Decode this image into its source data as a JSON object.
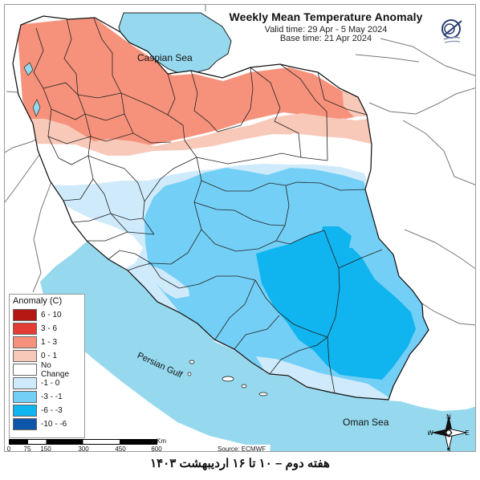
{
  "title": {
    "main": "Weekly Mean Temperature Anomaly",
    "valid": "Valid time: 29 Apr - 5 May 2024",
    "base": "Base time: 21 Apr 2024"
  },
  "map_labels": {
    "caspian_sea": "Caspian Sea",
    "persian_gulf": "Persian Gulf",
    "oman_sea": "Oman Sea",
    "source": "Source: ECMWF"
  },
  "legend": {
    "title": "Anomaly (C)",
    "items": [
      {
        "label": "6 - 10",
        "color": "#b51712"
      },
      {
        "label": "3 - 6",
        "color": "#e43c34"
      },
      {
        "label": "1 - 3",
        "color": "#f6927c"
      },
      {
        "label": "0 - 1",
        "color": "#f8c8b8"
      },
      {
        "label": "No Change",
        "color": "#ffffff"
      },
      {
        "label": "-1 - 0",
        "color": "#cfeafb"
      },
      {
        "label": "-3 - -1",
        "color": "#73cff5"
      },
      {
        "label": "-6 - -3",
        "color": "#10b4ee"
      },
      {
        "label": "-10 - -6",
        "color": "#0c55a9"
      }
    ]
  },
  "scale": {
    "ticks": [
      "0",
      "75",
      "150",
      "300",
      "450",
      "600"
    ],
    "unit": "Km"
  },
  "compass": {
    "north": "N",
    "south": "S",
    "east": "E",
    "west": "W"
  },
  "caption": "هفته دوم – ۱۰ تا ۱۶ اردیبهشت ۱۴۰۳",
  "colors": {
    "sea": "#96d9ee",
    "land": "#ffffff",
    "border": "#222222",
    "outside_land": "#ffffff"
  }
}
